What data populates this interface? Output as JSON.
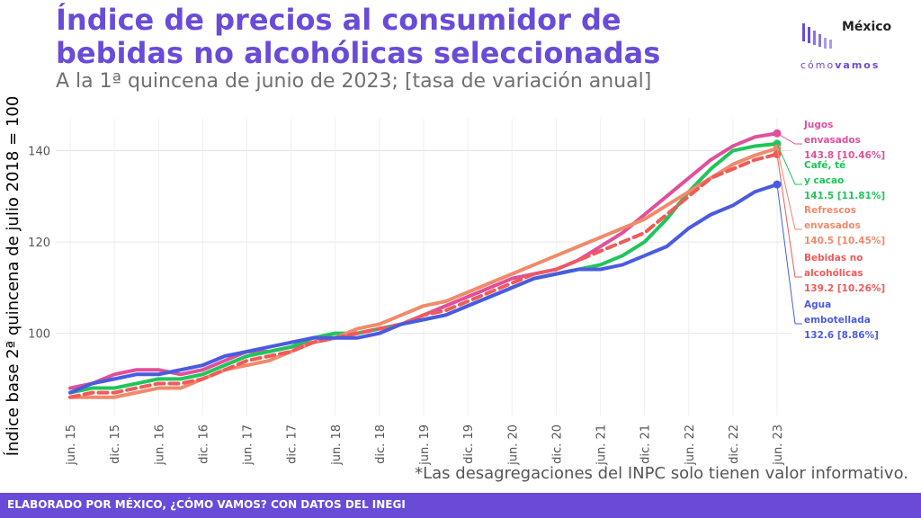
{
  "header": {
    "title": "Índice de precios al consumidor de bebidas no alcohólicas seleccionadas",
    "subtitle": "A la 1ª quincena de junio de 2023; [tasa de variación anual]"
  },
  "logo": {
    "word1": "México",
    "word2a": "cómo",
    "word2b": "vamos"
  },
  "note": "*Las desagregaciones del INPC solo tienen valor informativo.",
  "footer": {
    "text": "ELABORADO POR MÉXICO, ¿CÓMO VAMOS? CON DATOS DEL INEGI"
  },
  "chart_data": {
    "type": "line",
    "title": "Índice de precios al consumidor de bebidas no alcohólicas seleccionadas",
    "ylabel": "Índice base 2ª quincena de julio 2018 = 100",
    "xlabel": "",
    "ylim": [
      82,
      147
    ],
    "yticks": [
      100,
      120,
      140
    ],
    "x_ticks": [
      "jun. 15",
      "dic. 15",
      "jun. 16",
      "dic. 16",
      "jun. 17",
      "dic. 17",
      "jun. 18",
      "dic. 18",
      "jun. 19",
      "dic. 19",
      "jun. 20",
      "dic. 20",
      "jun. 21",
      "dic. 21",
      "jun. 22",
      "dic. 22",
      "jun. 23"
    ],
    "x": [
      "2015-06",
      "2015-09",
      "2015-12",
      "2016-03",
      "2016-06",
      "2016-09",
      "2016-12",
      "2017-03",
      "2017-06",
      "2017-09",
      "2017-12",
      "2018-03",
      "2018-06",
      "2018-09",
      "2018-12",
      "2019-03",
      "2019-06",
      "2019-09",
      "2019-12",
      "2020-03",
      "2020-06",
      "2020-09",
      "2020-12",
      "2021-03",
      "2021-06",
      "2021-09",
      "2021-12",
      "2022-03",
      "2022-06",
      "2022-09",
      "2022-12",
      "2023-03",
      "2023-06"
    ],
    "grid": true,
    "legend": "direct labels at line ends",
    "series": [
      {
        "name": "Jugos envasados",
        "value_label": "143.8 [10.46%]",
        "color": "#e0509a",
        "dashed": false,
        "values": [
          88,
          89,
          91,
          92,
          92,
          91,
          92,
          94,
          96,
          96,
          97,
          98,
          99,
          100,
          101,
          102,
          104,
          106,
          108,
          110,
          112,
          113,
          114,
          116,
          119,
          122,
          126,
          130,
          134,
          138,
          141,
          143,
          143.8
        ]
      },
      {
        "name": "Café, té y cacao",
        "value_label": "141.5 [11.81%]",
        "color": "#1fc55a",
        "dashed": false,
        "values": [
          87,
          88,
          88,
          89,
          90,
          90,
          91,
          93,
          95,
          96,
          97,
          99,
          100,
          100,
          101,
          102,
          103,
          104,
          106,
          108,
          110,
          112,
          113,
          114,
          115,
          117,
          120,
          125,
          131,
          136,
          140,
          141,
          141.5
        ]
      },
      {
        "name": "Refrescos envasados",
        "value_label": "140.5 [10.45%]",
        "color": "#f08a6a",
        "dashed": false,
        "values": [
          86,
          86,
          86,
          87,
          88,
          88,
          90,
          92,
          93,
          94,
          96,
          98,
          99,
          101,
          102,
          104,
          106,
          107,
          109,
          111,
          113,
          115,
          117,
          119,
          121,
          123,
          125,
          128,
          131,
          134,
          137,
          139,
          140.5
        ]
      },
      {
        "name": "Bebidas no alcohólicas",
        "value_label": "139.2 [10.26%]",
        "color": "#f05a5a",
        "dashed": true,
        "values": [
          86,
          87,
          87,
          88,
          89,
          89,
          90,
          92,
          94,
          95,
          96,
          98,
          99,
          100,
          101,
          102,
          104,
          105,
          107,
          109,
          111,
          113,
          114,
          116,
          118,
          120,
          122,
          126,
          130,
          134,
          136,
          138,
          139.2
        ]
      },
      {
        "name": "Agua embotellada",
        "value_label": "132.6 [8.86%]",
        "color": "#4a5be0",
        "dashed": false,
        "values": [
          87,
          89,
          90,
          91,
          91,
          92,
          93,
          95,
          96,
          97,
          98,
          99,
          99,
          99,
          100,
          102,
          103,
          104,
          106,
          108,
          110,
          112,
          113,
          114,
          114,
          115,
          117,
          119,
          123,
          126,
          128,
          131,
          132.6
        ]
      }
    ]
  }
}
